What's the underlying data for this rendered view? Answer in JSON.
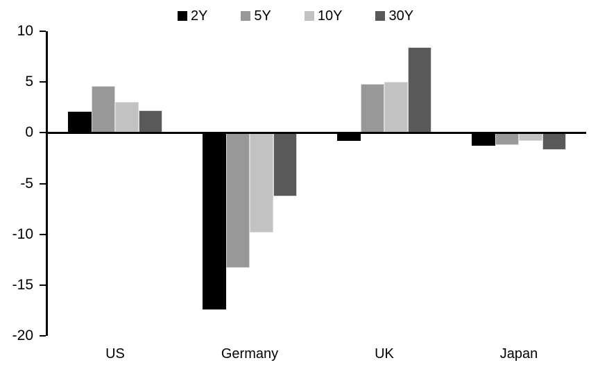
{
  "chart_data": {
    "type": "bar",
    "title": "",
    "xlabel": "",
    "ylabel": "",
    "categories": [
      "US",
      "Germany",
      "UK",
      "Japan"
    ],
    "series": [
      {
        "name": "2Y",
        "color": "#000000",
        "values": [
          2.1,
          -17.4,
          -0.8,
          -1.3
        ]
      },
      {
        "name": "5Y",
        "color": "#989898",
        "values": [
          4.6,
          -13.3,
          4.8,
          -1.2
        ]
      },
      {
        "name": "10Y",
        "color": "#c2c2c2",
        "values": [
          3.0,
          -9.8,
          5.0,
          -0.8
        ]
      },
      {
        "name": "30Y",
        "color": "#595959",
        "values": [
          2.2,
          -6.3,
          8.4,
          -1.7
        ]
      }
    ],
    "ylim": [
      -20,
      10
    ],
    "yticks": [
      10,
      5,
      0,
      -5,
      -10,
      -15,
      -20
    ],
    "grid": false,
    "legend_position": "top",
    "axis_color": "#000000",
    "bar_outline_color": "#d9d9d9"
  }
}
